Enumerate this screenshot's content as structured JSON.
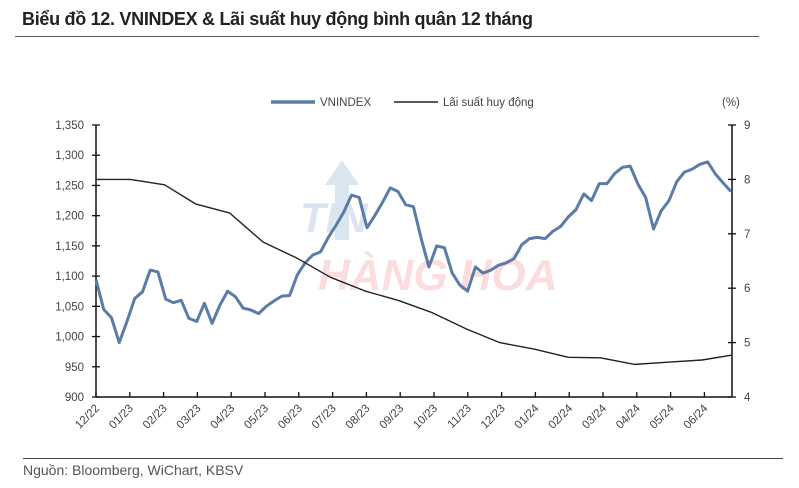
{
  "title": "Biểu đồ 12. VNINDEX & Lãi suất huy động bình quân 12 tháng",
  "source": "Nguồn: Bloomberg, WiChart, KBSV",
  "watermark": "TIN HÀNG HÓA",
  "chart_data": {
    "type": "line",
    "title": "",
    "legend_position": "top",
    "grid": false,
    "xlim": [
      "2022-12-01",
      "2024-06-28"
    ],
    "x_tick_labels": [
      "12/22",
      "01/23",
      "02/23",
      "03/23",
      "04/23",
      "05/23",
      "06/23",
      "07/23",
      "08/23",
      "09/23",
      "10/23",
      "11/23",
      "12/23",
      "01/24",
      "02/24",
      "03/24",
      "04/24",
      "05/24",
      "06/24"
    ],
    "y_left": {
      "label": "",
      "ylim": [
        900,
        1350
      ],
      "ticks": [
        "900",
        "950",
        "1,000",
        "1,050",
        "1,100",
        "1,150",
        "1,200",
        "1,250",
        "1,300",
        "1,350"
      ]
    },
    "y_right": {
      "label": "(%)",
      "ylim": [
        4,
        9
      ],
      "ticks": [
        "4",
        "5",
        "6",
        "7",
        "8",
        "9"
      ]
    },
    "series": [
      {
        "name": "VNINDEX",
        "axis": "left",
        "color": "#5a7ca6",
        "x": [
          "2022-12-01",
          "2022-12-08",
          "2022-12-15",
          "2022-12-22",
          "2022-12-29",
          "2023-01-05",
          "2023-01-12",
          "2023-01-19",
          "2023-01-26",
          "2023-02-02",
          "2023-02-09",
          "2023-02-16",
          "2023-02-23",
          "2023-03-02",
          "2023-03-09",
          "2023-03-16",
          "2023-03-23",
          "2023-03-30",
          "2023-04-06",
          "2023-04-13",
          "2023-04-20",
          "2023-04-27",
          "2023-05-04",
          "2023-05-11",
          "2023-05-18",
          "2023-05-25",
          "2023-06-01",
          "2023-06-08",
          "2023-06-15",
          "2023-06-22",
          "2023-06-29",
          "2023-07-06",
          "2023-07-13",
          "2023-07-20",
          "2023-07-27",
          "2023-08-03",
          "2023-08-10",
          "2023-08-17",
          "2023-08-24",
          "2023-08-31",
          "2023-09-07",
          "2023-09-14",
          "2023-09-21",
          "2023-09-28",
          "2023-10-05",
          "2023-10-12",
          "2023-10-19",
          "2023-10-26",
          "2023-11-02",
          "2023-11-09",
          "2023-11-16",
          "2023-11-23",
          "2023-11-30",
          "2023-12-07",
          "2023-12-14",
          "2023-12-21",
          "2023-12-28",
          "2024-01-04",
          "2024-01-11",
          "2024-01-18",
          "2024-01-25",
          "2024-02-01",
          "2024-02-08",
          "2024-02-15",
          "2024-02-22",
          "2024-02-29",
          "2024-03-07",
          "2024-03-14",
          "2024-03-21",
          "2024-03-28",
          "2024-04-04",
          "2024-04-11",
          "2024-04-18",
          "2024-04-25",
          "2024-05-02",
          "2024-05-09",
          "2024-05-16",
          "2024-05-23",
          "2024-05-30",
          "2024-06-06",
          "2024-06-13",
          "2024-06-20",
          "2024-06-27"
        ],
        "values": [
          1094,
          1045,
          1031,
          990,
          1025,
          1063,
          1074,
          1110,
          1107,
          1062,
          1056,
          1060,
          1030,
          1025,
          1055,
          1022,
          1052,
          1075,
          1066,
          1047,
          1044,
          1038,
          1050,
          1059,
          1067,
          1068,
          1102,
          1122,
          1135,
          1140,
          1164,
          1184,
          1206,
          1234,
          1230,
          1180,
          1200,
          1222,
          1246,
          1240,
          1218,
          1215,
          1162,
          1115,
          1150,
          1147,
          1105,
          1085,
          1075,
          1115,
          1105,
          1110,
          1118,
          1122,
          1129,
          1152,
          1162,
          1164,
          1162,
          1174,
          1182,
          1198,
          1210,
          1236,
          1225,
          1253,
          1253,
          1270,
          1280,
          1282,
          1252,
          1230,
          1178,
          1208,
          1225,
          1256,
          1272,
          1277,
          1285,
          1289,
          1269,
          1254,
          1240
        ]
      },
      {
        "name": "Lãi suất huy động",
        "axis": "right",
        "color": "#222222",
        "x": [
          "2022-12-01",
          "2023-01-01",
          "2023-02-01",
          "2023-03-01",
          "2023-04-01",
          "2023-05-01",
          "2023-06-01",
          "2023-07-01",
          "2023-08-01",
          "2023-09-01",
          "2023-10-01",
          "2023-11-01",
          "2023-12-01",
          "2024-01-01",
          "2024-02-01",
          "2024-03-01",
          "2024-04-01",
          "2024-05-01",
          "2024-06-01",
          "2024-06-28"
        ],
        "values": [
          8.0,
          8.0,
          7.9,
          7.55,
          7.38,
          6.85,
          6.55,
          6.2,
          5.95,
          5.77,
          5.55,
          5.25,
          5.0,
          4.88,
          4.73,
          4.72,
          4.6,
          4.64,
          4.68,
          4.77
        ]
      }
    ]
  }
}
